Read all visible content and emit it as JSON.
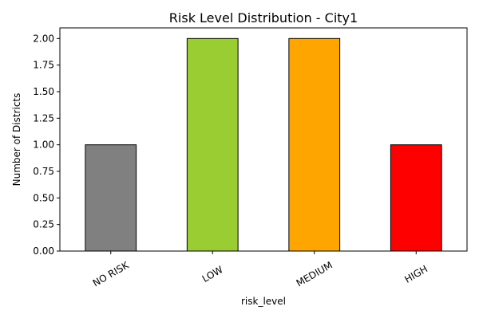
{
  "chart_data": {
    "type": "bar",
    "title": "Risk Level Distribution - City1",
    "xlabel": "risk_level",
    "ylabel": "Number of Districts",
    "categories": [
      "NO RISK",
      "LOW",
      "MEDIUM",
      "HIGH"
    ],
    "values": [
      1,
      2,
      2,
      1
    ],
    "colors": [
      "#808080",
      "#9acd32",
      "#ffa500",
      "#ff0000"
    ],
    "ylim": [
      0,
      2.1
    ],
    "yticks": [
      "0.00",
      "0.25",
      "0.50",
      "0.75",
      "1.00",
      "1.25",
      "1.50",
      "1.75",
      "2.00"
    ],
    "grid": false,
    "legend": "none"
  }
}
